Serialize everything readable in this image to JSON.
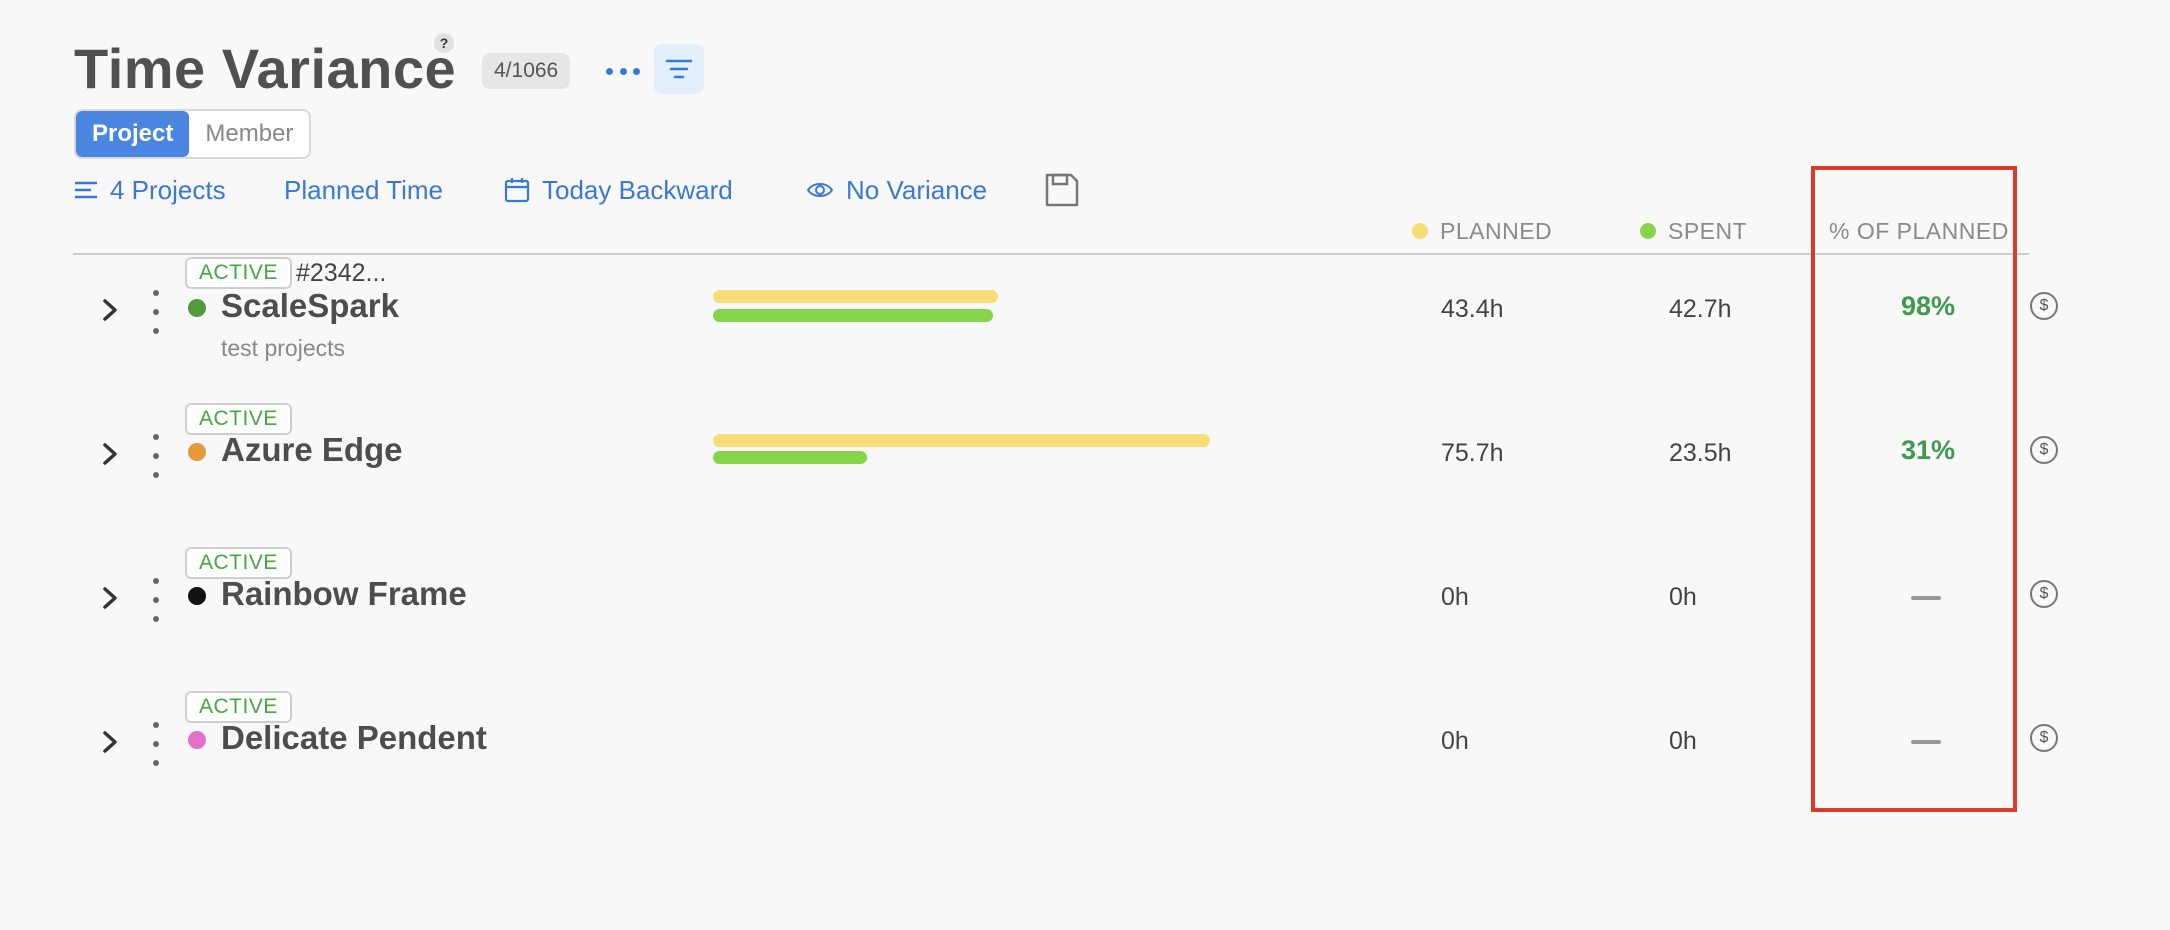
{
  "header": {
    "title": "Time Variance",
    "help": "?",
    "count": "4/1066",
    "more_icon": "more-horizontal-icon",
    "filter_icon": "filter-icon"
  },
  "toggle": {
    "project": "Project",
    "member": "Member",
    "active": "Project"
  },
  "filters": {
    "projects": "4 Projects",
    "planned_time": "Planned Time",
    "date_range": "Today Backward",
    "variance": "No Variance"
  },
  "columns": {
    "planned": "PLANNED",
    "spent": "SPENT",
    "percent": "% OF PLANNED"
  },
  "colors": {
    "accent": "#3a78d8",
    "planned": "#f7dc77",
    "spent": "#86d44a",
    "status_green": "#3fa83f",
    "highlight": "#dd3b2a"
  },
  "rows": [
    {
      "status": "ACTIVE",
      "id": "#2342...",
      "name": "ScaleSpark",
      "subtitle": "test projects",
      "color": "#4e9a3c",
      "planned": "43.4h",
      "spent": "42.7h",
      "percent": "98%",
      "planned_value": 43.4,
      "spent_value": 42.7
    },
    {
      "status": "ACTIVE",
      "id": "",
      "name": "Azure Edge",
      "subtitle": "",
      "color": "#e29a3a",
      "planned": "75.7h",
      "spent": "23.5h",
      "percent": "31%",
      "planned_value": 75.7,
      "spent_value": 23.5
    },
    {
      "status": "ACTIVE",
      "id": "",
      "name": "Rainbow Frame",
      "subtitle": "",
      "color": "#111111",
      "planned": "0h",
      "spent": "0h",
      "percent": "",
      "planned_value": 0,
      "spent_value": 0
    },
    {
      "status": "ACTIVE",
      "id": "",
      "name": "Delicate Pendent",
      "subtitle": "",
      "color": "#e36fcf",
      "planned": "0h",
      "spent": "0h",
      "percent": "",
      "planned_value": 0,
      "spent_value": 0
    }
  ],
  "dollar_symbol": "$"
}
